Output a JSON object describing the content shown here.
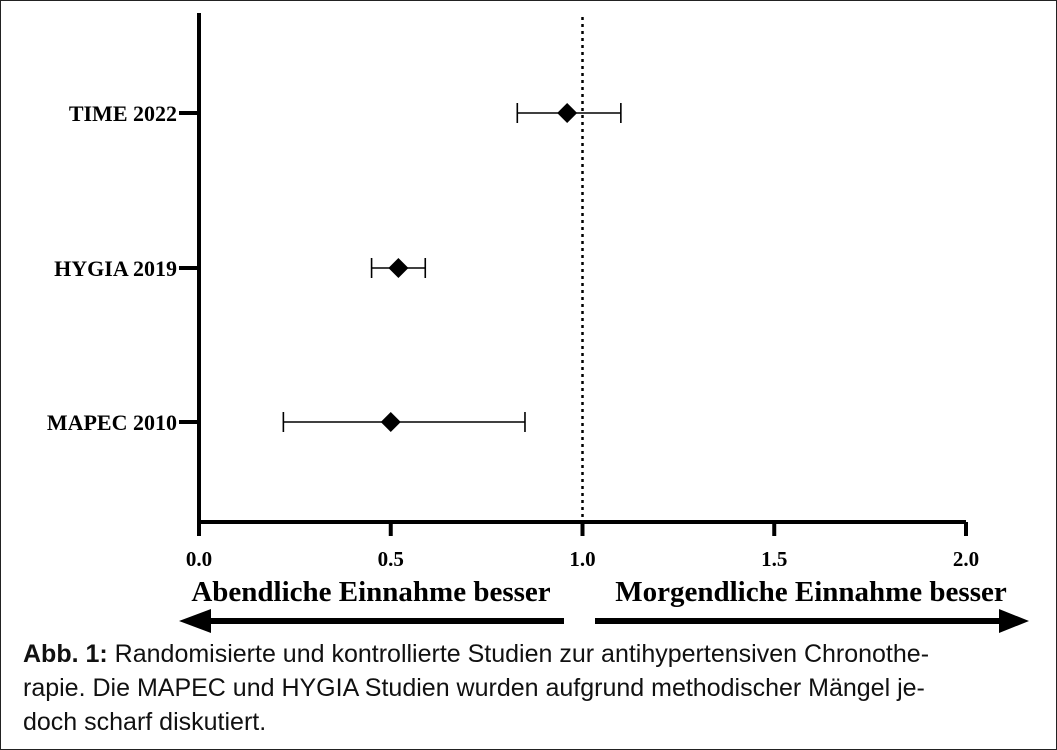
{
  "chart_data": {
    "type": "scatter",
    "subtype": "forest-plot",
    "xlim": [
      0,
      2.0
    ],
    "xticks": [
      "0.0",
      "0.5",
      "1.0",
      "1.5",
      "2.0"
    ],
    "reference_line": 1.0,
    "studies": [
      {
        "label": "TIME 2022",
        "estimate": 0.96,
        "ci_low": 0.83,
        "ci_high": 1.1
      },
      {
        "label": "HYGIA 2019",
        "estimate": 0.52,
        "ci_low": 0.45,
        "ci_high": 0.59
      },
      {
        "label": "MAPEC 2010",
        "estimate": 0.5,
        "ci_low": 0.22,
        "ci_high": 0.85
      }
    ],
    "direction_left": "Abendliche Einnahme besser",
    "direction_right": "Morgendliche Einnahme besser",
    "marker": "diamond",
    "colors": {
      "axis": "#000000",
      "marker": "#000000",
      "reference": "#000000"
    }
  },
  "caption": {
    "lead": "Abb. 1:",
    "lines": [
      "Randomisierte und kontrollierte Studien zur antihypertensiven Chronothe-",
      "rapie. Die MAPEC und HYGIA Studien wurden aufgrund methodischer Mängel je-",
      "doch scharf diskutiert."
    ]
  }
}
